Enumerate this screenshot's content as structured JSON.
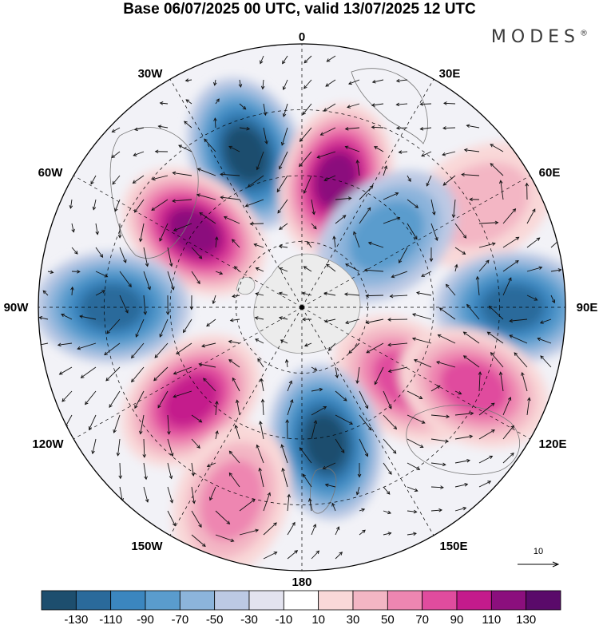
{
  "title": "Base 06/07/2025 00 UTC, valid 13/07/2025 12 UTC",
  "brand": {
    "text": "MODES",
    "mark": "®"
  },
  "longitude_labels": [
    "0",
    "30E",
    "60E",
    "90E",
    "120E",
    "150E",
    "180",
    "150W",
    "120W",
    "90W",
    "60W",
    "30W"
  ],
  "vector_scale_label": "10",
  "colorbar": {
    "ticks": [
      "-130",
      "-110",
      "-90",
      "-70",
      "-50",
      "-30",
      "-10",
      "10",
      "30",
      "50",
      "70",
      "90",
      "110",
      "130"
    ],
    "colors": [
      "#1d4e6e",
      "#2a6a9b",
      "#3b86bf",
      "#5a9ccd",
      "#8cb4db",
      "#bcc9e4",
      "#e3e3ef",
      "#ffffff",
      "#f9d8d8",
      "#f3b6c4",
      "#ee86b1",
      "#e04c9e",
      "#c41b8c",
      "#8b0f7d",
      "#5a0a6a"
    ]
  },
  "map": {
    "projection": "south polar stereographic",
    "anomaly_centers": [
      {
        "lon": -20,
        "sign": "negative",
        "level": 130
      },
      {
        "lon": 15,
        "sign": "positive",
        "level": 130
      },
      {
        "lon": -55,
        "sign": "positive",
        "level": 130
      },
      {
        "lon": 60,
        "sign": "positive",
        "level": 50
      },
      {
        "lon": 50,
        "sign": "negative",
        "level": 70
      },
      {
        "lon": 90,
        "sign": "negative",
        "level": 110
      },
      {
        "lon": -90,
        "sign": "negative",
        "level": 110
      },
      {
        "lon": 125,
        "sign": "positive",
        "level": 90
      },
      {
        "lon": 115,
        "sign": "positive",
        "level": 90
      },
      {
        "lon": -130,
        "sign": "positive",
        "level": 110
      },
      {
        "lon": 170,
        "sign": "negative",
        "level": 130
      },
      {
        "lon": -160,
        "sign": "positive",
        "level": 70
      }
    ]
  }
}
